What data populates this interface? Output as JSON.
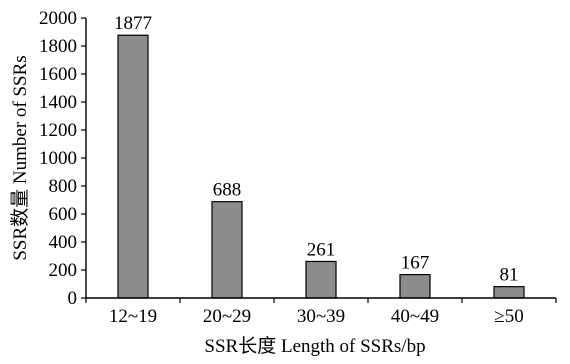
{
  "chart_data": {
    "type": "bar",
    "categories": [
      "12~19",
      "20~29",
      "30~39",
      "40~49",
      "≥50"
    ],
    "values": [
      1877,
      688,
      261,
      167,
      81
    ],
    "data_labels": [
      "1877",
      "688",
      "261",
      "167",
      "81"
    ],
    "title": "",
    "xlabel": "SSR长度 Length of SSRs/bp",
    "ylabel": "SSR数量 Number of SSRs",
    "ylim": [
      0,
      2000
    ],
    "yticks": [
      "0",
      "200",
      "400",
      "600",
      "800",
      "1000",
      "1200",
      "1400",
      "1600",
      "1800",
      "2000"
    ],
    "grid": false,
    "legend": "none",
    "colors": {
      "bar_fill": "#8c8c8c",
      "bar_stroke": "#000000",
      "axis": "#000000",
      "text": "#000000"
    }
  }
}
